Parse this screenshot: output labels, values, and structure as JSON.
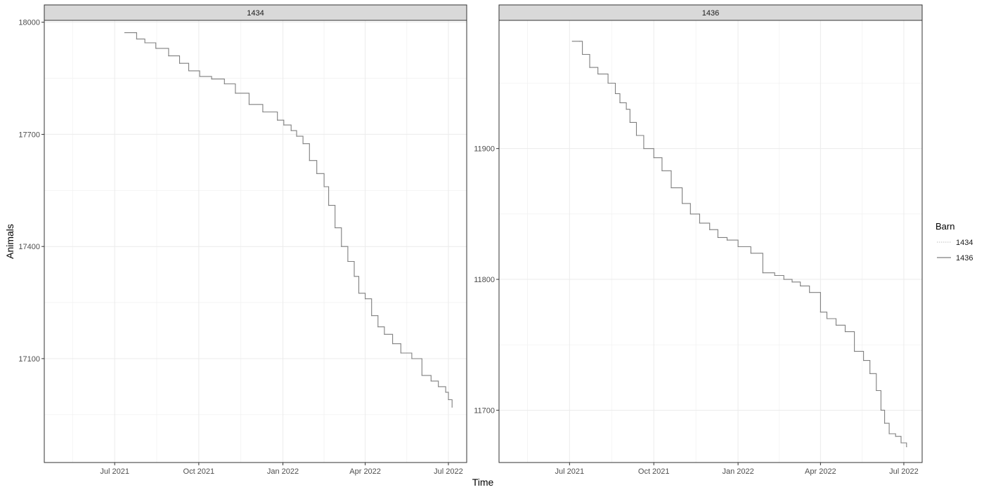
{
  "chart_data": {
    "type": "line",
    "xlabel": "Time",
    "ylabel": "Animals",
    "x_ticks": [
      "2021-07-01",
      "2021-10-01",
      "2022-01-01",
      "2022-04-01",
      "2022-07-01"
    ],
    "x_tick_labels": [
      "Jul 2021",
      "Oct 2021",
      "Jan 2022",
      "Apr 2022",
      "Jul 2022"
    ],
    "xlim": [
      "2021-04-15",
      "2022-07-21"
    ],
    "grid": true,
    "legend": {
      "title": "Barn",
      "position": "right",
      "entries": [
        "1434",
        "1436"
      ]
    },
    "colors": {
      "line": "#7f7f7f",
      "strip": "#d9d9d9",
      "grid": "#ebebeb",
      "panel_border": "#333333"
    },
    "panels": [
      {
        "strip": "1434",
        "series_name": "1434",
        "y_ticks": [
          17100,
          17400,
          17700,
          18000
        ],
        "y_tick_labels": [
          "17100",
          "17400",
          "17700",
          "18000"
        ],
        "ylim": [
          16822,
          18005
        ],
        "x": [
          "2021-07-12",
          "2021-07-23",
          "2021-07-25",
          "2021-08-03",
          "2021-08-15",
          "2021-08-29",
          "2021-09-10",
          "2021-09-20",
          "2021-10-02",
          "2021-10-15",
          "2021-10-29",
          "2021-11-10",
          "2021-11-25",
          "2021-12-10",
          "2021-12-26",
          "2022-01-02",
          "2022-01-10",
          "2022-01-16",
          "2022-01-23",
          "2022-01-30",
          "2022-02-07",
          "2022-02-15",
          "2022-02-20",
          "2022-02-27",
          "2022-03-06",
          "2022-03-13",
          "2022-03-20",
          "2022-03-25",
          "2022-04-01",
          "2022-04-08",
          "2022-04-15",
          "2022-04-22",
          "2022-05-01",
          "2022-05-10",
          "2022-05-22",
          "2022-06-01",
          "2022-06-02",
          "2022-06-12",
          "2022-06-20",
          "2022-06-28",
          "2022-07-01",
          "2022-07-05"
        ],
        "values": [
          17972,
          17972,
          17955,
          17945,
          17930,
          17910,
          17890,
          17870,
          17855,
          17848,
          17835,
          17810,
          17780,
          17760,
          17738,
          17725,
          17710,
          17695,
          17675,
          17630,
          17595,
          17560,
          17510,
          17450,
          17400,
          17360,
          17320,
          17275,
          17260,
          17215,
          17185,
          17165,
          17140,
          17115,
          17100,
          17100,
          17055,
          17040,
          17025,
          17010,
          16990,
          16970
        ]
      },
      {
        "strip": "1436",
        "series_name": "1436",
        "y_ticks": [
          11700,
          11800,
          11900
        ],
        "y_tick_labels": [
          "11700",
          "11800",
          "11900"
        ],
        "ylim": [
          11660,
          11998
        ],
        "x": [
          "2021-07-04",
          "2021-07-12",
          "2021-07-15",
          "2021-07-23",
          "2021-08-01",
          "2021-08-12",
          "2021-08-20",
          "2021-08-25",
          "2021-09-01",
          "2021-09-05",
          "2021-09-12",
          "2021-09-20",
          "2021-10-01",
          "2021-10-10",
          "2021-10-20",
          "2021-11-01",
          "2021-11-10",
          "2021-11-20",
          "2021-12-01",
          "2021-12-10",
          "2021-12-20",
          "2022-01-01",
          "2022-01-15",
          "2022-01-28",
          "2022-02-10",
          "2022-02-20",
          "2022-03-01",
          "2022-03-10",
          "2022-03-20",
          "2022-04-01",
          "2022-04-08",
          "2022-04-18",
          "2022-04-28",
          "2022-05-08",
          "2022-05-18",
          "2022-05-25",
          "2022-06-01",
          "2022-06-06",
          "2022-06-10",
          "2022-06-15",
          "2022-06-22",
          "2022-06-28",
          "2022-07-04"
        ],
        "values": [
          11982,
          11982,
          11972,
          11962,
          11957,
          11950,
          11942,
          11935,
          11930,
          11920,
          11910,
          11900,
          11893,
          11883,
          11870,
          11858,
          11850,
          11843,
          11838,
          11832,
          11830,
          11825,
          11820,
          11805,
          11803,
          11800,
          11798,
          11795,
          11790,
          11775,
          11770,
          11765,
          11760,
          11745,
          11738,
          11728,
          11715,
          11700,
          11690,
          11682,
          11680,
          11675,
          11672
        ]
      }
    ]
  }
}
